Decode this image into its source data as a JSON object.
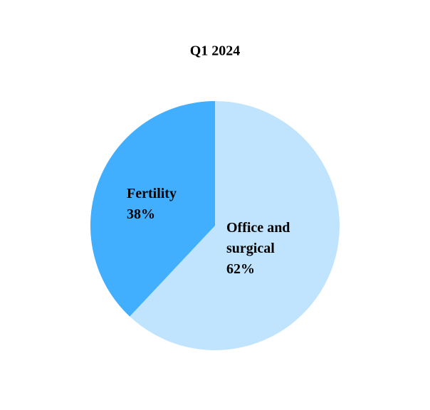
{
  "chart_data": {
    "type": "pie",
    "title": "Q1 2024",
    "categories": [
      "Office and surgical",
      "Fertility"
    ],
    "values": [
      62,
      38
    ],
    "value_labels": [
      "62%",
      "38%"
    ],
    "colors": [
      "#c0e4fd",
      "#42aefe"
    ]
  }
}
